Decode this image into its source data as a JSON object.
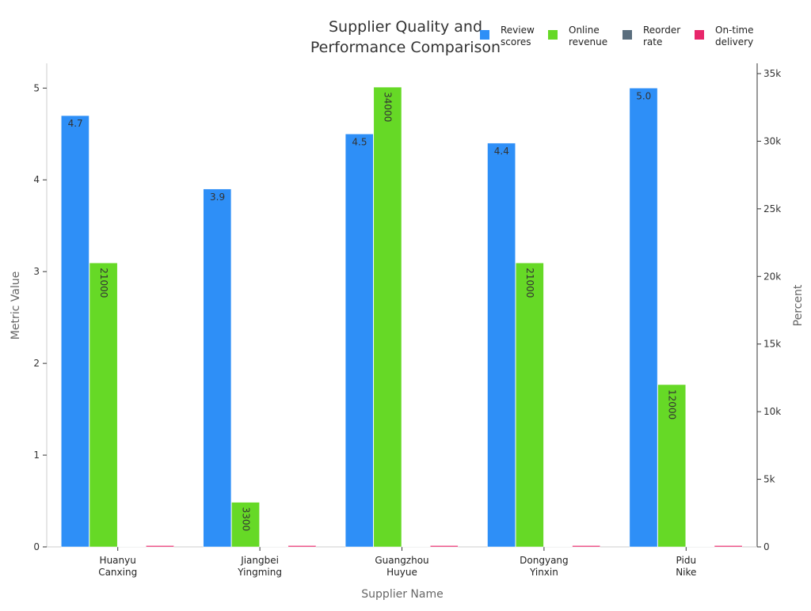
{
  "chart_data": {
    "type": "bar",
    "title": [
      "Supplier Quality and",
      "Performance Comparison"
    ],
    "xlabel": "Supplier Name",
    "ylabel": "Metric Value",
    "y2label": "Percent",
    "categories": [
      [
        "Huanyu",
        "Canxing"
      ],
      [
        "Jiangbei",
        "Yingming"
      ],
      [
        "Guangzhou",
        "Huyue"
      ],
      [
        "Dongyang",
        "Yinxin"
      ],
      [
        "Pidu",
        "Nike"
      ]
    ],
    "series": [
      {
        "name": [
          "Review",
          "scores"
        ],
        "axis": "left",
        "color": "#2e8ff7",
        "values": [
          4.7,
          3.9,
          4.5,
          4.4,
          5.0
        ],
        "labels": [
          "4.7",
          "3.9",
          "4.5",
          "4.4",
          "5.0"
        ],
        "label_rotated": false
      },
      {
        "name": [
          "Online",
          "revenue"
        ],
        "axis": "right",
        "color": "#66d926",
        "values": [
          21000,
          3300,
          34000,
          21000,
          12000
        ],
        "labels": [
          "21000",
          "3300",
          "34000",
          "21000",
          "12000"
        ],
        "label_rotated": true
      },
      {
        "name": [
          "Reorder",
          "rate"
        ],
        "axis": "right",
        "color": "#5a6e7e",
        "values": [
          30,
          30,
          30,
          30,
          30
        ]
      },
      {
        "name": [
          "On-time",
          "delivery"
        ],
        "axis": "right",
        "color": "#e8266a",
        "values": [
          95,
          95,
          95,
          95,
          95
        ]
      }
    ],
    "ylim": [
      0,
      5.27
    ],
    "yticks": [
      0,
      1,
      2,
      3,
      4,
      5
    ],
    "y2lim": [
      0,
      35760
    ],
    "y2ticks": [
      0,
      5000,
      10000,
      15000,
      20000,
      25000,
      30000,
      35000
    ],
    "y2ticklabels": [
      "0",
      "5k",
      "10k",
      "15k",
      "20k",
      "25k",
      "30k",
      "35k"
    ],
    "legend": "top-right",
    "grid": false
  }
}
